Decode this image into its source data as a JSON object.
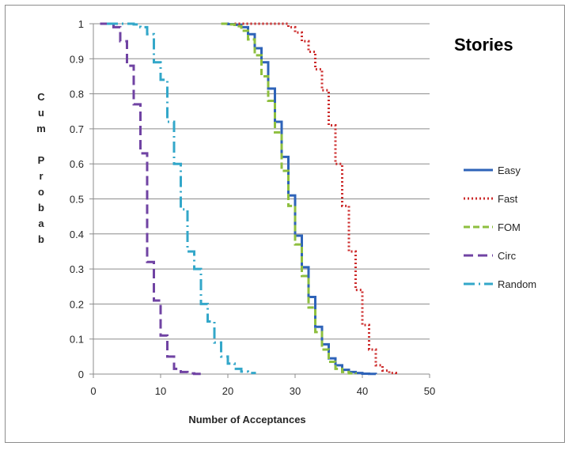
{
  "chart_data": {
    "type": "line",
    "step": true,
    "title": "Stories",
    "xlabel": "Number of Acceptances",
    "ylabel": "Cum Probab",
    "xlim": [
      0,
      50
    ],
    "ylim": [
      0,
      1
    ],
    "xticks": [
      0,
      10,
      20,
      30,
      40,
      50
    ],
    "yticks": [
      0,
      0.1,
      0.2,
      0.3,
      0.4,
      0.5,
      0.6,
      0.7,
      0.8,
      0.9,
      1
    ],
    "grid": "horizontal",
    "legend_position": "right",
    "series": [
      {
        "name": "Easy",
        "color": "#2e63b8",
        "dash": "solid",
        "points": [
          [
            19,
            1
          ],
          [
            20,
            0.999
          ],
          [
            21,
            0.997
          ],
          [
            22,
            0.99
          ],
          [
            23,
            0.97
          ],
          [
            24,
            0.93
          ],
          [
            25,
            0.89
          ],
          [
            26,
            0.815
          ],
          [
            27,
            0.72
          ],
          [
            28,
            0.62
          ],
          [
            29,
            0.51
          ],
          [
            30,
            0.395
          ],
          [
            31,
            0.305
          ],
          [
            32,
            0.22
          ],
          [
            33,
            0.135
          ],
          [
            34,
            0.085
          ],
          [
            35,
            0.045
          ],
          [
            36,
            0.025
          ],
          [
            37,
            0.012
          ],
          [
            38,
            0.006
          ],
          [
            39,
            0.003
          ],
          [
            40,
            0.001
          ],
          [
            41,
            0.0005
          ],
          [
            42,
            0
          ]
        ]
      },
      {
        "name": "Fast",
        "color": "#cc2b2b",
        "dash": "dotted",
        "points": [
          [
            21,
            1
          ],
          [
            28,
            1
          ],
          [
            29,
            0.99
          ],
          [
            30,
            0.975
          ],
          [
            31,
            0.95
          ],
          [
            32,
            0.92
          ],
          [
            33,
            0.87
          ],
          [
            34,
            0.81
          ],
          [
            35,
            0.71
          ],
          [
            36,
            0.6
          ],
          [
            37,
            0.48
          ],
          [
            38,
            0.35
          ],
          [
            39,
            0.24
          ],
          [
            40,
            0.14
          ],
          [
            41,
            0.07
          ],
          [
            42,
            0.025
          ],
          [
            43,
            0.01
          ],
          [
            44,
            0.003
          ],
          [
            45,
            0
          ]
        ]
      },
      {
        "name": "FOM",
        "color": "#8ebf3f",
        "dash": "dash",
        "points": [
          [
            19,
            1
          ],
          [
            20,
            0.998
          ],
          [
            21,
            0.993
          ],
          [
            22,
            0.98
          ],
          [
            23,
            0.955
          ],
          [
            24,
            0.91
          ],
          [
            25,
            0.85
          ],
          [
            26,
            0.78
          ],
          [
            27,
            0.69
          ],
          [
            28,
            0.58
          ],
          [
            29,
            0.48
          ],
          [
            30,
            0.37
          ],
          [
            31,
            0.28
          ],
          [
            32,
            0.19
          ],
          [
            33,
            0.12
          ],
          [
            34,
            0.07
          ],
          [
            35,
            0.035
          ],
          [
            36,
            0.015
          ],
          [
            37,
            0.006
          ],
          [
            38,
            0.002
          ],
          [
            39,
            0
          ]
        ]
      },
      {
        "name": "Circ",
        "color": "#7043a3",
        "dash": "longdash",
        "points": [
          [
            1,
            1
          ],
          [
            2,
            1
          ],
          [
            3,
            0.99
          ],
          [
            4,
            0.95
          ],
          [
            5,
            0.88
          ],
          [
            6,
            0.77
          ],
          [
            7,
            0.63
          ],
          [
            8,
            0.32
          ],
          [
            9,
            0.21
          ],
          [
            10,
            0.11
          ],
          [
            11,
            0.05
          ],
          [
            12,
            0.015
          ],
          [
            13,
            0.006
          ],
          [
            14,
            0.002
          ],
          [
            15,
            0.0005
          ],
          [
            16,
            0
          ]
        ]
      },
      {
        "name": "Random",
        "color": "#33a7c9",
        "dash": "dashdot",
        "points": [
          [
            2,
            1
          ],
          [
            5,
            1
          ],
          [
            6,
            0.998
          ],
          [
            7,
            0.99
          ],
          [
            8,
            0.97
          ],
          [
            9,
            0.89
          ],
          [
            10,
            0.84
          ],
          [
            11,
            0.72
          ],
          [
            12,
            0.6
          ],
          [
            13,
            0.47
          ],
          [
            14,
            0.35
          ],
          [
            15,
            0.3
          ],
          [
            16,
            0.2
          ],
          [
            17,
            0.15
          ],
          [
            18,
            0.09
          ],
          [
            19,
            0.05
          ],
          [
            20,
            0.03
          ],
          [
            21,
            0.015
          ],
          [
            22,
            0.007
          ],
          [
            23,
            0.003
          ],
          [
            24,
            0
          ]
        ]
      }
    ]
  }
}
